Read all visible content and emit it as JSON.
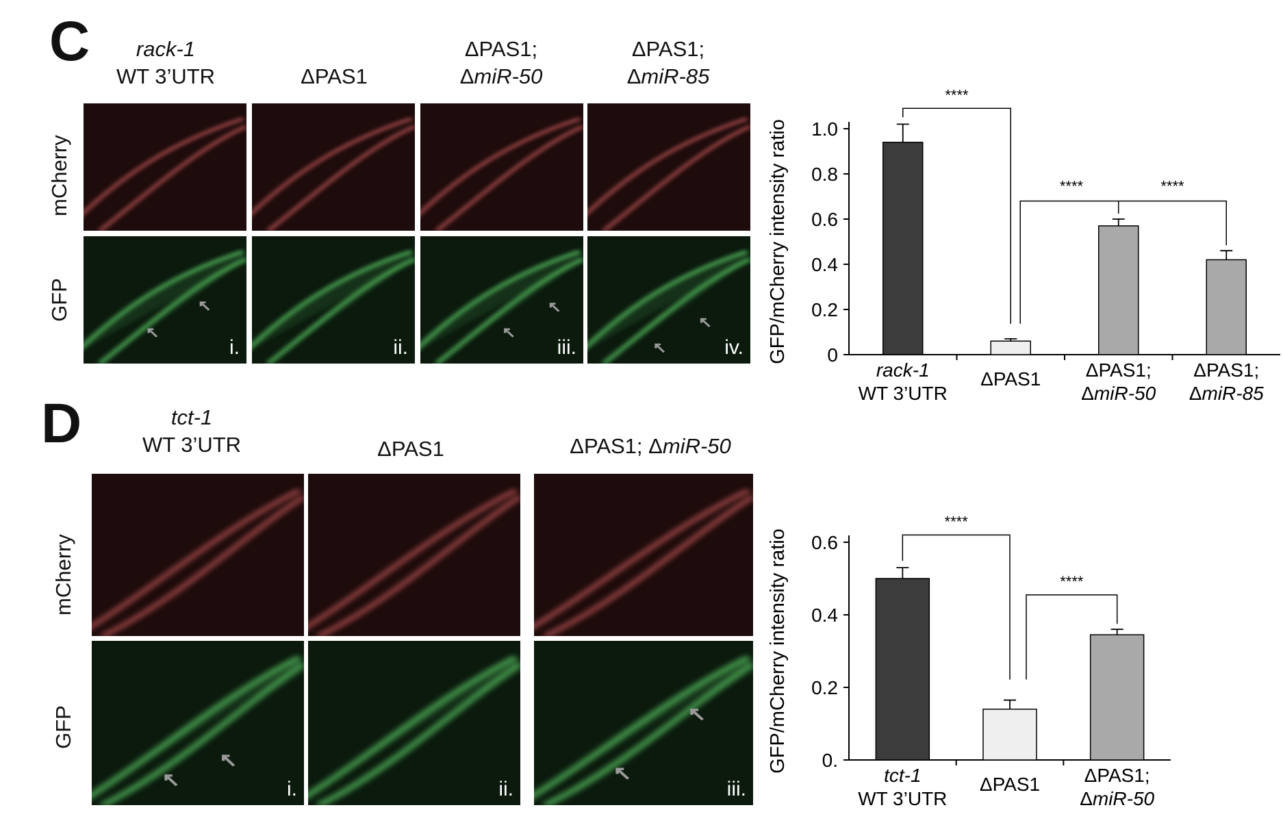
{
  "colors": {
    "mcherry_bg": "#1e0b0b",
    "mcherry_signal": "#d86262",
    "gfp_bg": "#0b1a0d",
    "gfp_signal": "#5fd26a",
    "bar_dark": "#3c3c3c",
    "bar_light": "#efefef",
    "bar_mid": "#a9a9a9",
    "arrow": "#9a9a9a"
  },
  "panel_c": {
    "letter": "C",
    "columns": [
      {
        "line1": "rack-1",
        "line2": "WT 3’UTR"
      },
      {
        "line1": "",
        "line2": "ΔPAS1"
      },
      {
        "line1": "ΔPAS1;",
        "line2_prefix": "Δ",
        "line2_italic": "miR-50"
      },
      {
        "line1": "ΔPAS1;",
        "line2_prefix": "Δ",
        "line2_italic": "miR-85"
      }
    ],
    "row_labels": [
      "mCherry",
      "GFP"
    ],
    "image_labels": [
      "i.",
      "ii.",
      "iii.",
      "iv."
    ]
  },
  "panel_d": {
    "letter": "D",
    "columns": [
      {
        "line1": "tct-1",
        "line2": "WT 3’UTR"
      },
      {
        "line1": "",
        "line2": "ΔPAS1"
      },
      {
        "line1": "",
        "line2_prefix": "ΔPAS1; Δ",
        "line2_italic": "miR-50"
      }
    ],
    "row_labels": [
      "mCherry",
      "GFP"
    ],
    "image_labels": [
      "i.",
      "ii.",
      "iii."
    ]
  },
  "chart_data": [
    {
      "type": "bar",
      "ylabel": "GFP/mCherry intensity ratio",
      "yticks": [
        "0",
        "0.2",
        "0.4",
        "0.6",
        "0.8",
        "1.0"
      ],
      "ylim": [
        0,
        1.0
      ],
      "categories": [
        {
          "line1": "rack-1",
          "line1_italic": true,
          "line2": "WT 3’UTR"
        },
        {
          "line1": "ΔPAS1",
          "line2": ""
        },
        {
          "line1": "ΔPAS1;",
          "line2_prefix": "Δ",
          "line2_italic": "miR-50"
        },
        {
          "line1": "ΔPAS1;",
          "line2_prefix": "Δ",
          "line2_italic": "miR-85"
        }
      ],
      "values": [
        0.94,
        0.06,
        0.57,
        0.42
      ],
      "errors": [
        0.08,
        0.01,
        0.03,
        0.04
      ],
      "bar_colors": [
        "#3c3c3c",
        "#efefef",
        "#a9a9a9",
        "#a9a9a9"
      ],
      "significance": [
        "****",
        "****",
        "****"
      ]
    },
    {
      "type": "bar",
      "ylabel": "GFP/mCherry intensity ratio",
      "yticks": [
        "0.",
        "0.2",
        "0.4",
        "0.6"
      ],
      "ylim": [
        0,
        0.6
      ],
      "categories": [
        {
          "line1": "tct-1",
          "line1_italic": true,
          "line2": "WT 3’UTR"
        },
        {
          "line1": "ΔPAS1",
          "line2": ""
        },
        {
          "line1": "ΔPAS1;",
          "line2_prefix": "Δ",
          "line2_italic": "miR-50"
        }
      ],
      "values": [
        0.5,
        0.14,
        0.345
      ],
      "errors": [
        0.03,
        0.025,
        0.015
      ],
      "bar_colors": [
        "#3c3c3c",
        "#efefef",
        "#a9a9a9"
      ],
      "significance": [
        "****",
        "****"
      ]
    }
  ]
}
